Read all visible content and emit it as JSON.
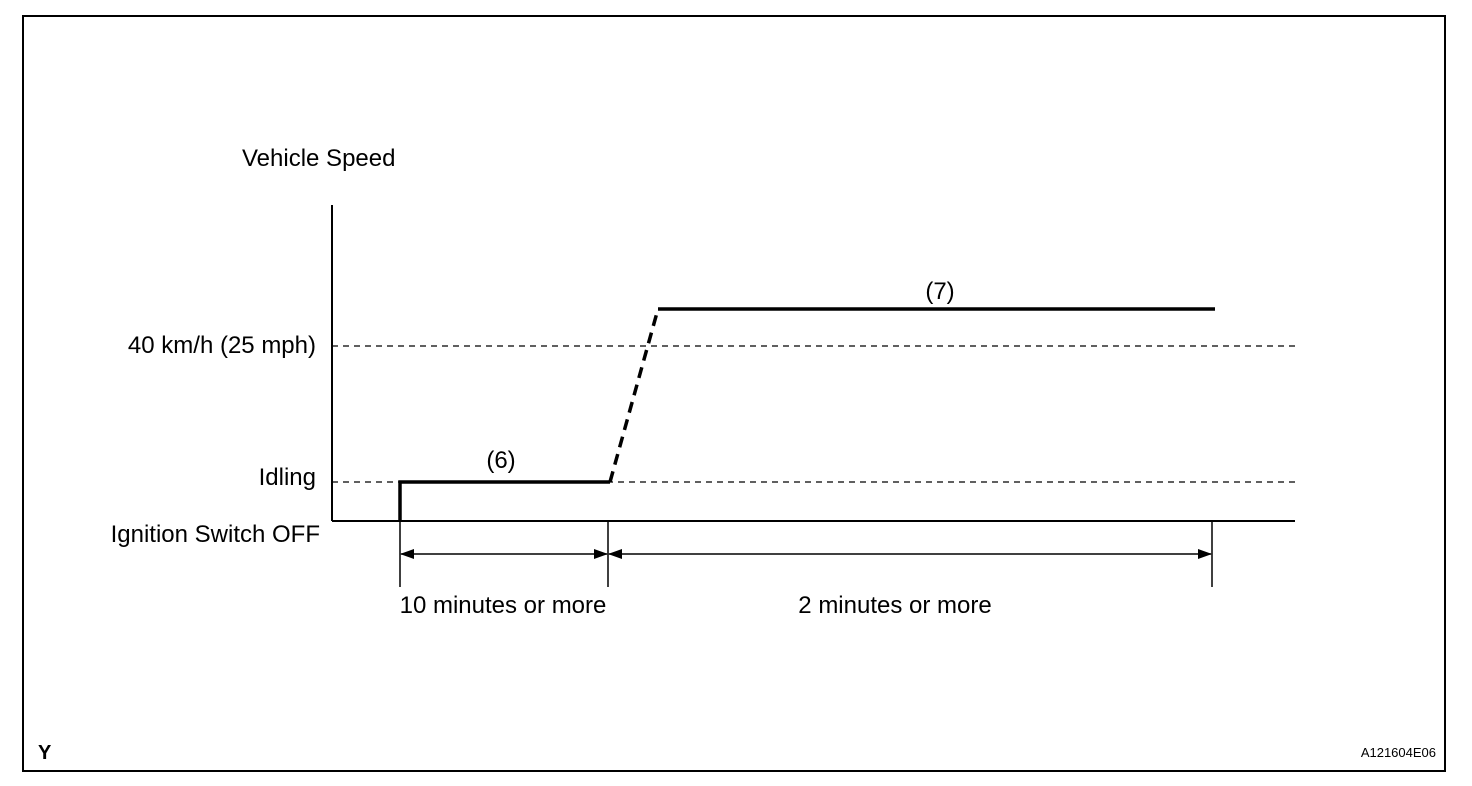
{
  "diagram": {
    "y_axis_title": "Vehicle Speed",
    "levels": {
      "speed": "40 km/h (25 mph)",
      "idling": "Idling",
      "off": "Ignition Switch OFF"
    },
    "steps": {
      "step6": "(6)",
      "step7": "(7)"
    },
    "durations": {
      "first": "10 minutes or more",
      "second": "2 minutes or more"
    },
    "corner_left": "Y",
    "figure_code": "A121604E06"
  }
}
